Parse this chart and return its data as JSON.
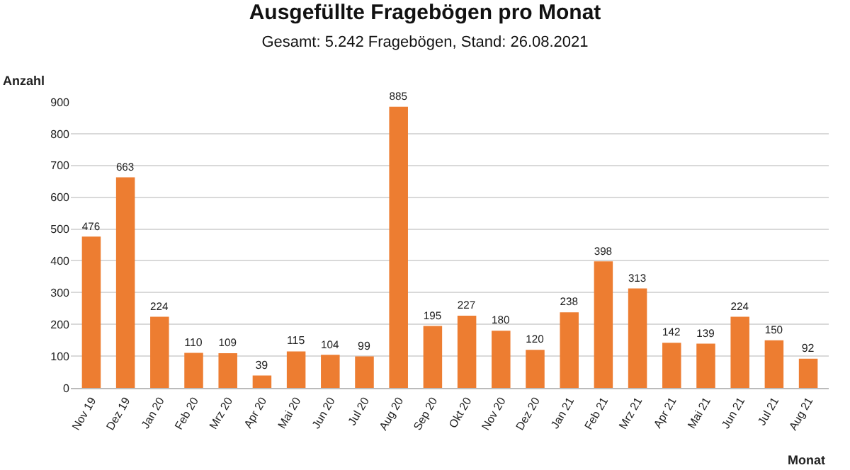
{
  "chart_data": {
    "type": "bar",
    "title": "Ausgefüllte Fragebögen pro Monat",
    "subtitle": "Gesamt: 5.242 Fragebögen, Stand: 26.08.2021",
    "xlabel": "Monat",
    "ylabel": "Anzahl",
    "categories": [
      "Nov 19",
      "Dez 19",
      "Jan 20",
      "Feb 20",
      "Mrz 20",
      "Apr 20",
      "Mai 20",
      "Jun 20",
      "Jul 20",
      "Aug 20",
      "Sep 20",
      "Okt 20",
      "Nov 20",
      "Dez 20",
      "Jan 21",
      "Feb 21",
      "Mrz 21",
      "Apr 21",
      "Mai 21",
      "Jun 21",
      "Jul 21",
      "Aug 21"
    ],
    "values": [
      476,
      663,
      224,
      110,
      109,
      39,
      115,
      104,
      99,
      885,
      195,
      227,
      180,
      120,
      238,
      398,
      313,
      142,
      139,
      224,
      150,
      92
    ],
    "color": "#ed7d31",
    "ylim": [
      0,
      900
    ],
    "yticks": [
      0,
      100,
      200,
      300,
      400,
      500,
      600,
      700,
      800,
      900
    ],
    "grid": "y",
    "data_labels": true,
    "legend": false
  }
}
